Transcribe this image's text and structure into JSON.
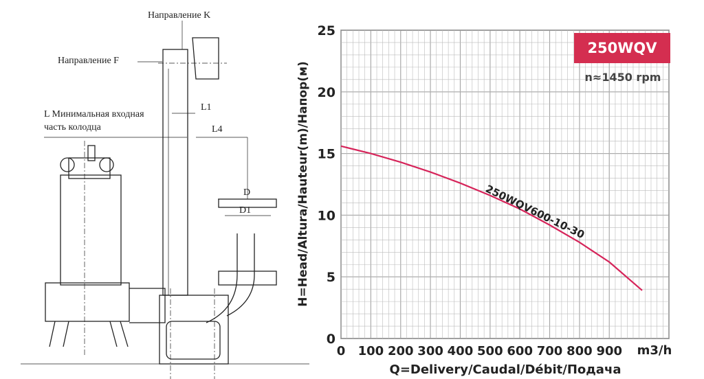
{
  "drawing": {
    "direction_k": "Направление K",
    "direction_f": "Направление F",
    "min_inlet_line1": "L Минимальная входная",
    "min_inlet_line2": "часть колодца",
    "l1": "L1",
    "l4": "L4",
    "d": "D",
    "d1": "D1"
  },
  "chart_data": {
    "type": "line",
    "title": "250WQV",
    "subtitle": "n≈1450 rpm",
    "x_label": "Q=Delivery/Caudal/Débit/Подача",
    "y_label": "H=Head/Altura/Hauteur(m)/Напор(м)",
    "x_unit": "m3/h",
    "x": [
      0,
      100,
      200,
      300,
      400,
      500,
      600,
      700,
      800,
      900,
      1010
    ],
    "series": [
      {
        "name": "250WQV600-10-30",
        "color": "#d6245a",
        "values": [
          15.6,
          15.0,
          14.3,
          13.5,
          12.6,
          11.6,
          10.5,
          9.2,
          7.8,
          6.2,
          3.9
        ]
      }
    ],
    "xlim": [
      0,
      1100
    ],
    "ylim": [
      0,
      25
    ],
    "xticks": [
      0,
      100,
      200,
      300,
      400,
      500,
      600,
      700,
      800,
      900
    ],
    "yticks": [
      0,
      5,
      10,
      15,
      20,
      25
    ],
    "grid": true
  }
}
